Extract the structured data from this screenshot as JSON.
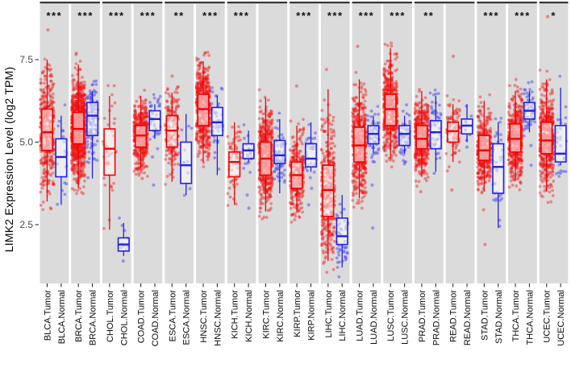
{
  "chart_data": {
    "type": "boxplot-jitter",
    "ylabel": "LIMK2 Expression Level (log2 TPM)",
    "yticks": [
      "7.5",
      "5.0",
      "2.5"
    ],
    "ytick_values": [
      7.5,
      5.0,
      2.5
    ],
    "ylim": [
      0.72,
      9.18
    ],
    "grid": false,
    "legend_position": "none",
    "panel_bg": "#dbdbdb",
    "colors": {
      "tumor": "#f40000",
      "normal": "#2121e6",
      "tumor_dot": "rgba(240,20,20,0.42)",
      "normal_dot": "rgba(85,85,235,0.55)",
      "axis_text": "#4a4a4a",
      "label_text": "#0a0a0a",
      "star_text": "#111111",
      "group_line": "#363636"
    },
    "panels": [
      {
        "cancer": "BLCA",
        "significance": "***",
        "tumor": {
          "label": "BLCA.Tumor",
          "lo": 3.2,
          "q1": 4.75,
          "med": 5.3,
          "q3": 6.0,
          "hi": 7.5,
          "n": 410,
          "outliers": [
            8.4
          ]
        },
        "normal": {
          "label": "BLCA.Normal",
          "lo": 3.1,
          "q1": 3.95,
          "med": 4.55,
          "q3": 5.1,
          "hi": 5.8,
          "n": 19,
          "outliers": []
        }
      },
      {
        "cancer": "BRCA",
        "significance": "***",
        "tumor": {
          "label": "BRCA.Tumor",
          "lo": 3.6,
          "q1": 4.95,
          "med": 5.4,
          "q3": 5.9,
          "hi": 7.35,
          "n": 1000,
          "outliers": [
            7.65
          ]
        },
        "normal": {
          "label": "BRCA.Normal",
          "lo": 3.9,
          "q1": 5.2,
          "med": 5.8,
          "q3": 6.2,
          "hi": 6.55,
          "n": 112,
          "outliers": []
        }
      },
      {
        "cancer": "CHOL",
        "significance": "***",
        "tumor": {
          "label": "CHOL.Tumor",
          "lo": 2.35,
          "q1": 4.0,
          "med": 4.8,
          "q3": 5.4,
          "hi": 6.4,
          "n": 36,
          "outliers": []
        },
        "normal": {
          "label": "CHOL.Normal",
          "lo": 1.55,
          "q1": 1.7,
          "med": 1.9,
          "q3": 2.1,
          "hi": 2.55,
          "n": 9,
          "outliers": [
            1.4
          ]
        }
      },
      {
        "cancer": "COAD",
        "significance": "***",
        "tumor": {
          "label": "COAD.Tumor",
          "lo": 4.2,
          "q1": 4.85,
          "med": 5.2,
          "q3": 5.5,
          "hi": 6.4,
          "n": 450,
          "outliers": [
            3.9
          ]
        },
        "normal": {
          "label": "COAD.Normal",
          "lo": 5.1,
          "q1": 5.35,
          "med": 5.7,
          "q3": 5.95,
          "hi": 6.15,
          "n": 41,
          "outliers": [
            4.55,
            3.7
          ]
        }
      },
      {
        "cancer": "ESCA",
        "significance": "**",
        "tumor": {
          "label": "ESCA.Tumor",
          "lo": 3.8,
          "q1": 4.85,
          "med": 5.35,
          "q3": 5.8,
          "hi": 6.5,
          "n": 180,
          "outliers": [
            7.0
          ]
        },
        "normal": {
          "label": "ESCA.Normal",
          "lo": 3.4,
          "q1": 3.75,
          "med": 4.3,
          "q3": 5.0,
          "hi": 5.85,
          "n": 11,
          "outliers": []
        }
      },
      {
        "cancer": "HNSC",
        "significance": "***",
        "tumor": {
          "label": "HNSC.Tumor",
          "lo": 4.4,
          "q1": 5.5,
          "med": 6.0,
          "q3": 6.45,
          "hi": 7.45,
          "n": 520,
          "outliers": [
            7.7
          ]
        },
        "normal": {
          "label": "HNSC.Normal",
          "lo": 4.0,
          "q1": 5.2,
          "med": 5.6,
          "q3": 6.05,
          "hi": 6.4,
          "n": 44,
          "outliers": []
        }
      },
      {
        "cancer": "KICH",
        "significance": "***",
        "tumor": {
          "label": "KICH.Tumor",
          "lo": 3.1,
          "q1": 3.95,
          "med": 4.4,
          "q3": 4.7,
          "hi": 5.6,
          "n": 66,
          "outliers": []
        },
        "normal": {
          "label": "KICH.Normal",
          "lo": 4.4,
          "q1": 4.5,
          "med": 4.75,
          "q3": 4.95,
          "hi": 5.35,
          "n": 25,
          "outliers": [
            3.4,
            3.0
          ]
        }
      },
      {
        "cancer": "KIRC",
        "significance": "",
        "tumor": {
          "label": "KIRC.Tumor",
          "lo": 2.9,
          "q1": 4.0,
          "med": 4.5,
          "q3": 5.0,
          "hi": 6.35,
          "n": 530,
          "outliers": []
        },
        "normal": {
          "label": "KIRC.Normal",
          "lo": 3.45,
          "q1": 4.35,
          "med": 4.6,
          "q3": 5.05,
          "hi": 5.7,
          "n": 72,
          "outliers": []
        }
      },
      {
        "cancer": "KIRP",
        "significance": "***",
        "tumor": {
          "label": "KIRP.Tumor",
          "lo": 2.9,
          "q1": 3.6,
          "med": 4.0,
          "q3": 4.4,
          "hi": 5.5,
          "n": 290,
          "outliers": [
            6.7
          ]
        },
        "normal": {
          "label": "KIRP.Normal",
          "lo": 4.1,
          "q1": 4.25,
          "med": 4.5,
          "q3": 4.95,
          "hi": 5.6,
          "n": 32,
          "outliers": [
            3.6,
            3.1
          ]
        }
      },
      {
        "cancer": "LIHC",
        "significance": "***",
        "tumor": {
          "label": "LIHC.Tumor",
          "lo": 1.4,
          "q1": 2.75,
          "med": 3.55,
          "q3": 4.3,
          "hi": 6.6,
          "n": 370,
          "outliers": [
            7.2
          ]
        },
        "normal": {
          "label": "LIHC.Normal",
          "lo": 1.2,
          "q1": 1.9,
          "med": 2.15,
          "q3": 2.7,
          "hi": 3.4,
          "n": 50,
          "outliers": []
        }
      },
      {
        "cancer": "LUAD",
        "significance": "***",
        "tumor": {
          "label": "LUAD.Tumor",
          "lo": 3.3,
          "q1": 4.4,
          "med": 4.9,
          "q3": 5.45,
          "hi": 6.9,
          "n": 510,
          "outliers": [
            7.9
          ]
        },
        "normal": {
          "label": "LUAD.Normal",
          "lo": 4.65,
          "q1": 4.95,
          "med": 5.25,
          "q3": 5.5,
          "hi": 5.8,
          "n": 58,
          "outliers": [
            4.4,
            3.7,
            2.4
          ]
        }
      },
      {
        "cancer": "LUSC",
        "significance": "***",
        "tumor": {
          "label": "LUSC.Tumor",
          "lo": 4.5,
          "q1": 5.5,
          "med": 6.0,
          "q3": 6.45,
          "hi": 7.85,
          "n": 500,
          "outliers": [
            8.0
          ]
        },
        "normal": {
          "label": "LUSC.Normal",
          "lo": 4.65,
          "q1": 4.9,
          "med": 5.25,
          "q3": 5.5,
          "hi": 5.8,
          "n": 50,
          "outliers": [
            4.4
          ]
        }
      },
      {
        "cancer": "PRAD",
        "significance": "**",
        "tumor": {
          "label": "PRAD.Tumor",
          "lo": 3.95,
          "q1": 4.8,
          "med": 5.1,
          "q3": 5.5,
          "hi": 6.55,
          "n": 495,
          "outliers": [
            3.5
          ]
        },
        "normal": {
          "label": "PRAD.Normal",
          "lo": 4.1,
          "q1": 4.8,
          "med": 5.3,
          "q3": 5.65,
          "hi": 6.4,
          "n": 52,
          "outliers": []
        }
      },
      {
        "cancer": "READ",
        "significance": "",
        "tumor": {
          "label": "READ.Tumor",
          "lo": 4.4,
          "q1": 5.0,
          "med": 5.33,
          "q3": 5.6,
          "hi": 6.15,
          "n": 95,
          "outliers": [
            7.6,
            3.55
          ]
        },
        "normal": {
          "label": "READ.Normal",
          "lo": 5.0,
          "q1": 5.25,
          "med": 5.5,
          "q3": 5.7,
          "hi": 6.15,
          "n": 10,
          "outliers": [
            4.85
          ]
        }
      },
      {
        "cancer": "STAD",
        "significance": "***",
        "tumor": {
          "label": "STAD.Tumor",
          "lo": 3.5,
          "q1": 4.45,
          "med": 4.75,
          "q3": 5.2,
          "hi": 6.25,
          "n": 415,
          "outliers": [
            2.95,
            1.9
          ]
        },
        "normal": {
          "label": "STAD.Normal",
          "lo": 2.4,
          "q1": 3.45,
          "med": 4.25,
          "q3": 4.95,
          "hi": 5.6,
          "n": 35,
          "outliers": []
        }
      },
      {
        "cancer": "THCA",
        "significance": "***",
        "tumor": {
          "label": "THCA.Tumor",
          "lo": 3.85,
          "q1": 4.7,
          "med": 5.1,
          "q3": 5.55,
          "hi": 6.55,
          "n": 505,
          "outliers": []
        },
        "normal": {
          "label": "THCA.Normal",
          "lo": 5.3,
          "q1": 5.7,
          "med": 5.95,
          "q3": 6.2,
          "hi": 6.55,
          "n": 59,
          "outliers": [
            4.9,
            4.3
          ]
        }
      },
      {
        "cancer": "UCEC",
        "significance": "*",
        "tumor": {
          "label": "UCEC.Tumor",
          "lo": 3.5,
          "q1": 4.65,
          "med": 5.05,
          "q3": 5.6,
          "hi": 6.9,
          "n": 545,
          "outliers": [
            8.8
          ]
        },
        "normal": {
          "label": "UCEC.Normal",
          "lo": 4.3,
          "q1": 4.4,
          "med": 4.65,
          "q3": 5.5,
          "hi": 6.65,
          "n": 35,
          "outliers": []
        }
      }
    ]
  }
}
